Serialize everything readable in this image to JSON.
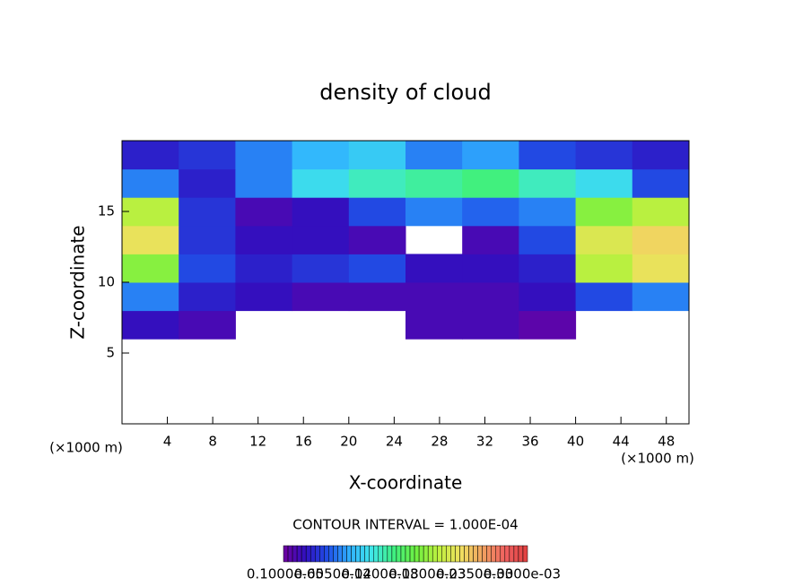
{
  "chart_data": {
    "type": "heatmap",
    "title": "density of cloud",
    "x_label": "X-coordinate",
    "y_label": "Z-coordinate",
    "x_unit": "(×1000 m)",
    "y_unit": "(×1000 m)",
    "note": "CONTOUR INTERVAL = 1.000E-04",
    "xlim": [
      0,
      50
    ],
    "ylim": [
      0,
      20
    ],
    "xticks": [
      4,
      8,
      12,
      16,
      20,
      24,
      28,
      32,
      36,
      40,
      44,
      48
    ],
    "yticks": [
      5,
      10,
      15
    ],
    "x_edges": [
      0,
      5,
      10,
      15,
      20,
      25,
      30,
      35,
      40,
      45,
      50
    ],
    "y_edges": [
      0,
      2,
      4,
      6,
      8,
      10,
      12,
      14,
      16,
      18,
      20
    ],
    "z": [
      [
        null,
        null,
        null,
        null,
        null,
        null,
        null,
        null,
        null,
        null
      ],
      [
        null,
        null,
        null,
        null,
        null,
        null,
        null,
        null,
        null,
        null
      ],
      [
        null,
        null,
        null,
        null,
        null,
        null,
        null,
        null,
        null,
        null
      ],
      [
        3e-05,
        2e-05,
        null,
        null,
        null,
        2e-05,
        2e-05,
        1e-05,
        null,
        null
      ],
      [
        8e-05,
        4e-05,
        3e-05,
        2e-05,
        2e-05,
        2e-05,
        2e-05,
        3e-05,
        6e-05,
        8e-05
      ],
      [
        0.0002,
        6e-05,
        4e-05,
        5e-05,
        6e-05,
        3e-05,
        3e-05,
        4e-05,
        0.00022,
        0.00025
      ],
      [
        0.00025,
        5e-05,
        3e-05,
        3e-05,
        2e-05,
        null,
        2e-05,
        6e-05,
        0.00024,
        0.00026
      ],
      [
        0.00022,
        5e-05,
        2e-05,
        3e-05,
        6e-05,
        8e-05,
        7e-05,
        8e-05,
        0.0002,
        0.00022
      ],
      [
        8e-05,
        4e-05,
        8e-05,
        0.00012,
        0.00014,
        0.00015,
        0.00016,
        0.00014,
        0.00012,
        6e-05
      ],
      [
        4e-05,
        5e-05,
        8e-05,
        0.0001,
        0.00011,
        8e-05,
        9e-05,
        6e-05,
        5e-05,
        4e-05
      ]
    ],
    "zlim": [
      0,
      0.00035
    ],
    "colors": [
      "#7000a0",
      "#3010c0",
      "#2050e8",
      "#30b0ff",
      "#40e8e8",
      "#40f080",
      "#70f040",
      "#c0f040",
      "#f0e060",
      "#f0a060",
      "#f06060",
      "#e04040"
    ],
    "colorbar_labels": [
      "0.1000e-05",
      "0.6050e-04",
      "0.1200e-03",
      "0.1800e-03",
      "0.2350e-03",
      "0.3000e-03"
    ]
  }
}
